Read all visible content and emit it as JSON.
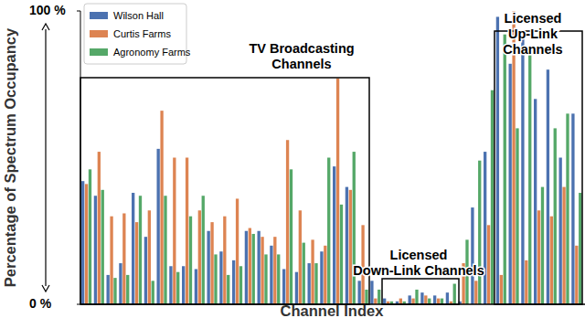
{
  "chart_data": {
    "type": "bar",
    "y_label": "Percentage of Spectrum Occupancy",
    "x_label": "Channel Index",
    "categories": [
      null,
      null,
      null,
      null,
      null,
      null,
      null,
      null,
      null,
      null,
      null,
      null,
      null,
      null,
      null,
      null,
      null,
      null,
      null,
      null,
      null,
      null,
      null,
      null,
      null,
      null,
      null,
      null,
      null,
      null,
      null,
      null,
      null,
      null,
      null,
      null,
      null,
      null,
      null,
      null
    ],
    "series": [
      {
        "name": "Wilson Hall",
        "color": "#4c72b0",
        "values": [
          42,
          37,
          10,
          14,
          38,
          23,
          53,
          13,
          13,
          12,
          25,
          18,
          15,
          25,
          25,
          20,
          12,
          11,
          14,
          18,
          47,
          40,
          8,
          8,
          2,
          1,
          3,
          4,
          3,
          4,
          1,
          33,
          52,
          98,
          82,
          92,
          70,
          80,
          50,
          65
        ]
      },
      {
        "name": "Curtis Farms",
        "color": "#dd8452",
        "values": [
          41,
          52,
          30,
          31,
          28,
          32,
          66,
          50,
          50,
          32,
          28,
          30,
          36,
          26,
          23,
          23,
          56,
          32,
          22,
          20,
          77,
          39,
          27,
          2,
          1,
          2,
          2,
          3,
          2,
          1,
          14,
          8,
          27,
          10,
          100,
          15,
          32,
          30,
          40,
          20
        ]
      },
      {
        "name": "Agronomy Farms",
        "color": "#55a868",
        "values": [
          46,
          39,
          9,
          10,
          37,
          8,
          37,
          11,
          30,
          37,
          17,
          10,
          13,
          24,
          17,
          17,
          46,
          21,
          14,
          50,
          34,
          52,
          5,
          5,
          1,
          1,
          5,
          2,
          2,
          7,
          22,
          49,
          73,
          92,
          60,
          85,
          40,
          60,
          65,
          38
        ]
      }
    ],
    "ylim": [
      0,
      100
    ],
    "yticks": [
      {
        "value": 0,
        "label": "0 %"
      },
      {
        "value": 100,
        "label": "100 %"
      }
    ],
    "tick_labels": "y",
    "legend": "upper left",
    "annotations": [
      {
        "lines": [
          "TV Broadcasting",
          "Channels"
        ]
      },
      {
        "lines": [
          "Licensed",
          "Down-Link Channels"
        ]
      },
      {
        "lines": [
          "Licensed",
          "Up-Link",
          "Channels"
        ]
      }
    ]
  }
}
